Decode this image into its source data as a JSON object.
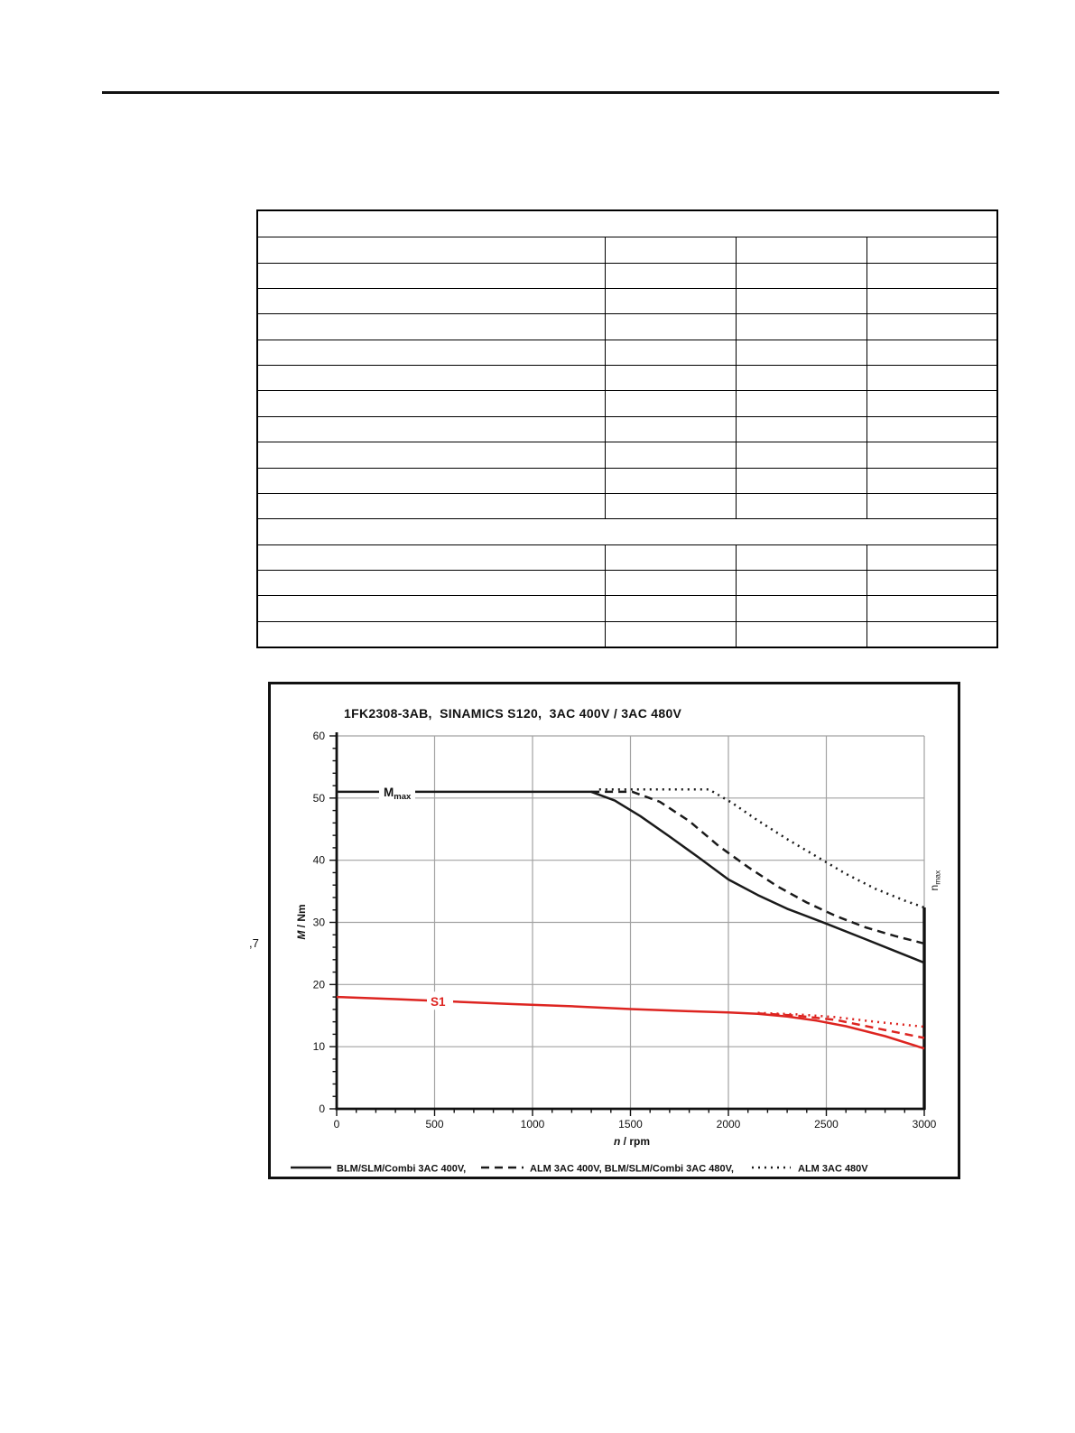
{
  "figure": {
    "title": "1FK2308-3AB,  SINAMICS S120,  3AC 400V / 3AC 480V",
    "stray_text_left": ",7"
  },
  "empty_table": {
    "row_count": 17,
    "merged_row_indexes": [
      0,
      12
    ],
    "column_count": 4
  },
  "chart_data": {
    "type": "line",
    "title": "1FK2308-3AB,  SINAMICS S120,  3AC 400V / 3AC 480V",
    "xlabel_main": "n",
    "xlabel_rest": " / rpm",
    "ylabel_main": "M",
    "ylabel_rest": " / Nm",
    "xlim": [
      0,
      3000
    ],
    "ylim": [
      0,
      60
    ],
    "x_ticks": [
      0,
      500,
      1000,
      1500,
      2000,
      2500,
      3000
    ],
    "y_ticks": [
      0,
      10,
      20,
      30,
      40,
      50,
      60
    ],
    "x_minor_step": 100,
    "y_minor_step": 2,
    "grid": true,
    "grid_color": "#a2a2a2",
    "axis_color": "#111111",
    "black_curve_color": "#1a1a1a",
    "red_curve_color": "#dd2420",
    "limit_line": {
      "x": 3000,
      "from": 32.4,
      "to": 0
    },
    "annotations": [
      {
        "id": "m-max",
        "text_main": "M",
        "text_sub": "max",
        "x": 310,
        "y": 51,
        "color": "#111111"
      },
      {
        "id": "s1",
        "text_main": "S1",
        "text_sub": "",
        "x": 520,
        "y": 17.4,
        "color": "#dd2420"
      },
      {
        "id": "n-max",
        "text_main": "n",
        "text_sub": "max",
        "x": 3000,
        "y": 35,
        "color": "#111111",
        "rotated": true
      }
    ],
    "series": [
      {
        "name": "Mmax BLM/SLM/Combi 3AC 400V",
        "color": "#1a1a1a",
        "style": "solid",
        "points": [
          [
            0,
            51
          ],
          [
            1300,
            51
          ],
          [
            1420,
            49.6
          ],
          [
            1550,
            47.1
          ],
          [
            1700,
            43.8
          ],
          [
            1850,
            40.4
          ],
          [
            2000,
            36.9
          ],
          [
            2150,
            34.4
          ],
          [
            2300,
            32.2
          ],
          [
            2500,
            29.8
          ],
          [
            2700,
            27.3
          ],
          [
            2850,
            25.4
          ],
          [
            3000,
            23.5
          ]
        ]
      },
      {
        "name": "Mmax ALM 3AC 400V, BLM/SLM/Combi 3AC 480V",
        "color": "#1a1a1a",
        "style": "dashed",
        "points": [
          [
            1300,
            51
          ],
          [
            1510,
            51
          ],
          [
            1650,
            49.4
          ],
          [
            1800,
            46.3
          ],
          [
            1950,
            42.3
          ],
          [
            2100,
            38.9
          ],
          [
            2250,
            35.8
          ],
          [
            2400,
            33.2
          ],
          [
            2550,
            31.0
          ],
          [
            2700,
            29.2
          ],
          [
            2850,
            27.8
          ],
          [
            3000,
            26.6
          ]
        ]
      },
      {
        "name": "Mmax ALM 3AC 480V",
        "color": "#1a1a1a",
        "style": "dotted",
        "points": [
          [
            1340,
            51.4
          ],
          [
            1900,
            51.4
          ],
          [
            2020,
            49.2
          ],
          [
            2150,
            46.4
          ],
          [
            2300,
            43.4
          ],
          [
            2450,
            40.6
          ],
          [
            2600,
            37.8
          ],
          [
            2750,
            35.4
          ],
          [
            2900,
            33.5
          ],
          [
            3000,
            32.4
          ]
        ]
      },
      {
        "name": "S1 BLM/SLM/Combi 3AC 400V",
        "color": "#dd2420",
        "style": "solid",
        "points": [
          [
            0,
            18
          ],
          [
            300,
            17.65
          ],
          [
            600,
            17.25
          ],
          [
            900,
            16.85
          ],
          [
            1200,
            16.5
          ],
          [
            1500,
            16.05
          ],
          [
            1800,
            15.7
          ],
          [
            2000,
            15.5
          ],
          [
            2150,
            15.3
          ],
          [
            2300,
            14.85
          ],
          [
            2450,
            14.2
          ],
          [
            2600,
            13.3
          ],
          [
            2800,
            11.7
          ],
          [
            3000,
            9.7
          ]
        ]
      },
      {
        "name": "S1 ALM 3AC 400V, BLM/SLM/Combi 3AC 480V",
        "color": "#dd2420",
        "style": "dashed",
        "points": [
          [
            2150,
            15.35
          ],
          [
            2350,
            15.0
          ],
          [
            2550,
            14.3
          ],
          [
            2750,
            13.0
          ],
          [
            3000,
            11.4
          ]
        ]
      },
      {
        "name": "S1 ALM 3AC 480V",
        "color": "#dd2420",
        "style": "dotted",
        "points": [
          [
            2150,
            15.45
          ],
          [
            2350,
            15.2
          ],
          [
            2550,
            14.75
          ],
          [
            2750,
            14.0
          ],
          [
            3000,
            13.2
          ]
        ]
      }
    ],
    "legend": [
      {
        "style": "solid",
        "color": "#1a1a1a",
        "label": "BLM/SLM/Combi 3AC 400V,"
      },
      {
        "style": "dashed",
        "color": "#1a1a1a",
        "label": "ALM 3AC 400V, BLM/SLM/Combi 3AC 480V,"
      },
      {
        "style": "dotted",
        "color": "#1a1a1a",
        "label": "ALM 3AC 480V"
      }
    ],
    "legend_position": "bottom"
  }
}
